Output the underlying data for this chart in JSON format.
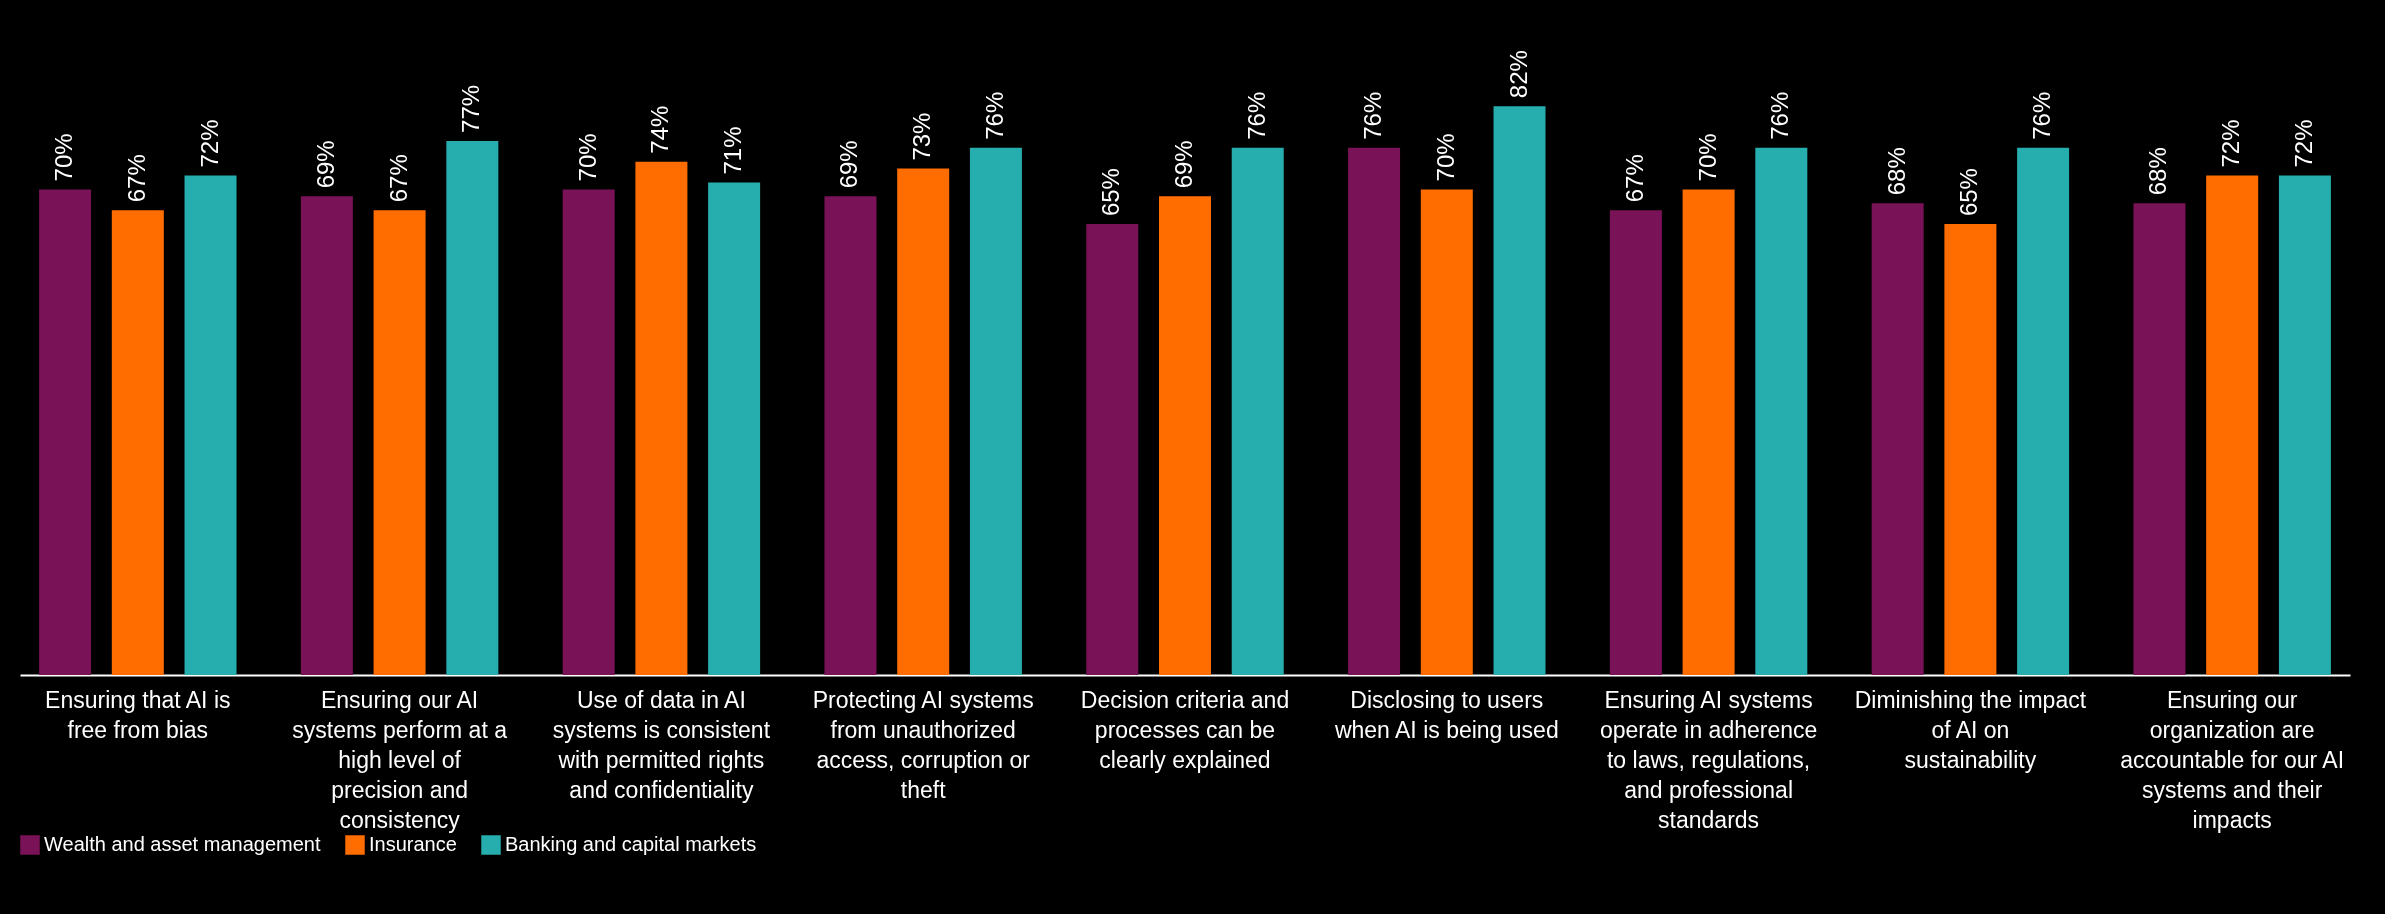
{
  "chart_data": {
    "type": "bar",
    "categories": [
      "Ensuring that AI is free from bias",
      "Ensuring our AI systems perform at a high level of precision and consistency",
      "Use of data in AI systems is consistent with permitted rights and confidentiality",
      "Protecting AI systems from unauthorized access, corruption or theft",
      "Decision criteria and processes can be clearly explained",
      "Disclosing to users when AI is being used",
      "Ensuring AI systems operate in adherence to laws, regulations, and professional standards",
      "Diminishing the impact of AI on sustainability",
      "Ensuring our organization are accountable for our AI systems and their impacts"
    ],
    "series": [
      {
        "name": "Wealth and asset management",
        "color": "#7a1257",
        "values": [
          70,
          69,
          70,
          69,
          65,
          76,
          67,
          68,
          68
        ],
        "value_labels": [
          "70%",
          "69%",
          "70%",
          "69%",
          "65%",
          "76%",
          "67%",
          "68%",
          "68%"
        ]
      },
      {
        "name": "Insurance",
        "color": "#ff6d00",
        "values": [
          67,
          67,
          74,
          73,
          69,
          70,
          70,
          65,
          72
        ],
        "value_labels": [
          "67%",
          "67%",
          "74%",
          "73%",
          "69%",
          "70%",
          "70%",
          "65%",
          "72%"
        ]
      },
      {
        "name": "Banking and capital markets",
        "color": "#26aeae",
        "values": [
          72,
          77,
          71,
          76,
          76,
          82,
          76,
          76,
          72
        ],
        "value_labels": [
          "72%",
          "77%",
          "71%",
          "76%",
          "76%",
          "82%",
          "76%",
          "76%",
          "72%"
        ]
      }
    ],
    "legend": "bottom left",
    "grid": false
  }
}
